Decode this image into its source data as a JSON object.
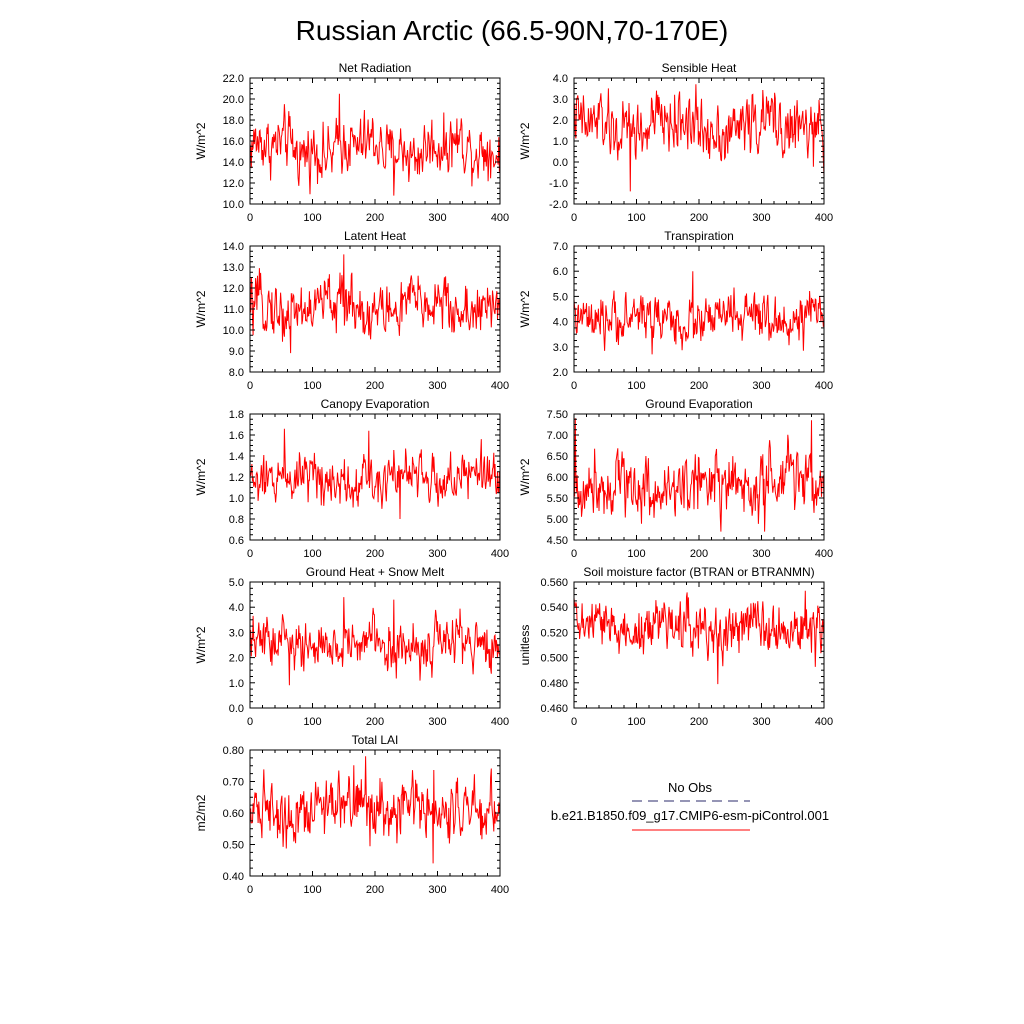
{
  "title": "Russian Arctic (66.5-90N,70-170E)",
  "legend": {
    "entries": [
      {
        "label": "No Obs",
        "color": "#2b2b6b",
        "style": "dashed"
      },
      {
        "label": "b.e21.B1850.f09_g17.CMIP6-esm-piControl.001",
        "color": "#ff0000",
        "style": "solid"
      }
    ]
  },
  "chart_data": [
    {
      "type": "line",
      "title": "Net Radiation",
      "ylabel": "W/m^2",
      "xlim": [
        0,
        400
      ],
      "ylim": [
        10,
        22
      ],
      "xticks": [
        0,
        100,
        200,
        300,
        400
      ],
      "yticks": [
        "10.0",
        "12.0",
        "14.0",
        "16.0",
        "18.0",
        "20.0",
        "22.0"
      ],
      "series": [
        {
          "color": "#ff0000",
          "n": 400,
          "mean": 15.3,
          "range": [
            10.8,
            20.5
          ],
          "spikes": [
            [
              143,
              20.5
            ],
            [
              230,
              10.8
            ]
          ]
        }
      ]
    },
    {
      "type": "line",
      "title": "Sensible Heat",
      "ylabel": "W/m^2",
      "xlim": [
        0,
        400
      ],
      "ylim": [
        -2,
        4
      ],
      "xticks": [
        0,
        100,
        200,
        300,
        400
      ],
      "yticks": [
        "-2.0",
        "-1.0",
        "0.0",
        "1.0",
        "2.0",
        "3.0",
        "4.0"
      ],
      "series": [
        {
          "color": "#ff0000",
          "n": 400,
          "mean": 1.7,
          "range": [
            -1.4,
            3.7
          ],
          "spikes": [
            [
              90,
              -1.4
            ],
            [
              195,
              3.7
            ],
            [
              400,
              -0.7
            ]
          ]
        }
      ]
    },
    {
      "type": "line",
      "title": "Latent Heat",
      "ylabel": "W/m^2",
      "xlim": [
        0,
        400
      ],
      "ylim": [
        8,
        14
      ],
      "xticks": [
        0,
        100,
        200,
        300,
        400
      ],
      "yticks": [
        "8.0",
        "9.0",
        "10.0",
        "11.0",
        "12.0",
        "13.0",
        "14.0"
      ],
      "series": [
        {
          "color": "#ff0000",
          "n": 400,
          "mean": 11.1,
          "range": [
            8.9,
            13.6
          ],
          "spikes": [
            [
              150,
              13.6
            ],
            [
              65,
              8.9
            ]
          ]
        }
      ]
    },
    {
      "type": "line",
      "title": "Transpiration",
      "ylabel": "W/m^2",
      "xlim": [
        0,
        400
      ],
      "ylim": [
        2,
        7
      ],
      "xticks": [
        0,
        100,
        200,
        300,
        400
      ],
      "yticks": [
        "2.0",
        "3.0",
        "4.0",
        "5.0",
        "6.0",
        "7.0"
      ],
      "series": [
        {
          "color": "#ff0000",
          "n": 400,
          "mean": 4.1,
          "range": [
            2.7,
            6.0
          ],
          "spikes": [
            [
              190,
              6.0
            ],
            [
              125,
              2.7
            ]
          ]
        }
      ]
    },
    {
      "type": "line",
      "title": "Canopy Evaporation",
      "ylabel": "W/m^2",
      "xlim": [
        0,
        400
      ],
      "ylim": [
        0.6,
        1.8
      ],
      "xticks": [
        0,
        100,
        200,
        300,
        400
      ],
      "yticks": [
        "0.6",
        "0.8",
        "1.0",
        "1.2",
        "1.4",
        "1.6",
        "1.8"
      ],
      "series": [
        {
          "color": "#ff0000",
          "n": 400,
          "mean": 1.2,
          "range": [
            0.8,
            1.66
          ],
          "spikes": [
            [
              55,
              1.66
            ],
            [
              190,
              1.64
            ],
            [
              240,
              0.78
            ]
          ]
        }
      ]
    },
    {
      "type": "line",
      "title": "Ground Evaporation",
      "ylabel": "W/m^2",
      "xlim": [
        0,
        400
      ],
      "ylim": [
        4.5,
        7.5
      ],
      "xticks": [
        0,
        100,
        200,
        300,
        400
      ],
      "yticks": [
        "4.50",
        "5.00",
        "5.50",
        "6.00",
        "6.50",
        "7.00",
        "7.50"
      ],
      "series": [
        {
          "color": "#ff0000",
          "n": 400,
          "mean": 5.8,
          "range": [
            4.7,
            7.4
          ],
          "spikes": [
            [
              2,
              7.4
            ],
            [
              380,
              7.35
            ],
            [
              305,
              4.7
            ]
          ]
        }
      ]
    },
    {
      "type": "line",
      "title": "Ground Heat + Snow Melt",
      "ylabel": "W/m^2",
      "xlim": [
        0,
        400
      ],
      "ylim": [
        0,
        5
      ],
      "xticks": [
        0,
        100,
        200,
        300,
        400
      ],
      "yticks": [
        "0.0",
        "1.0",
        "2.0",
        "3.0",
        "4.0",
        "5.0"
      ],
      "series": [
        {
          "color": "#ff0000",
          "n": 400,
          "mean": 2.5,
          "range": [
            0.9,
            4.4
          ],
          "spikes": [
            [
              150,
              4.4
            ],
            [
              230,
              4.3
            ],
            [
              63,
              0.9
            ]
          ]
        }
      ]
    },
    {
      "type": "line",
      "title": "Soil moisture factor (BTRAN or BTRANMN)",
      "ylabel": "unitless",
      "xlim": [
        0,
        400
      ],
      "ylim": [
        0.46,
        0.56
      ],
      "xticks": [
        0,
        100,
        200,
        300,
        400
      ],
      "yticks": [
        "0.460",
        "0.480",
        "0.500",
        "0.520",
        "0.540",
        "0.560"
      ],
      "series": [
        {
          "color": "#ff0000",
          "n": 400,
          "mean": 0.524,
          "range": [
            0.479,
            0.553
          ],
          "spikes": [
            [
              230,
              0.479
            ],
            [
              370,
              0.553
            ]
          ]
        }
      ]
    },
    {
      "type": "line",
      "title": "Total LAI",
      "ylabel": "m2/m2",
      "xlim": [
        0,
        400
      ],
      "ylim": [
        0.4,
        0.8
      ],
      "xticks": [
        0,
        100,
        200,
        300,
        400
      ],
      "yticks": [
        "0.40",
        "0.50",
        "0.60",
        "0.70",
        "0.80"
      ],
      "series": [
        {
          "color": "#ff0000",
          "n": 400,
          "mean": 0.62,
          "range": [
            0.44,
            0.78
          ],
          "spikes": [
            [
              185,
              0.78
            ],
            [
              293,
              0.44
            ]
          ]
        }
      ]
    }
  ]
}
